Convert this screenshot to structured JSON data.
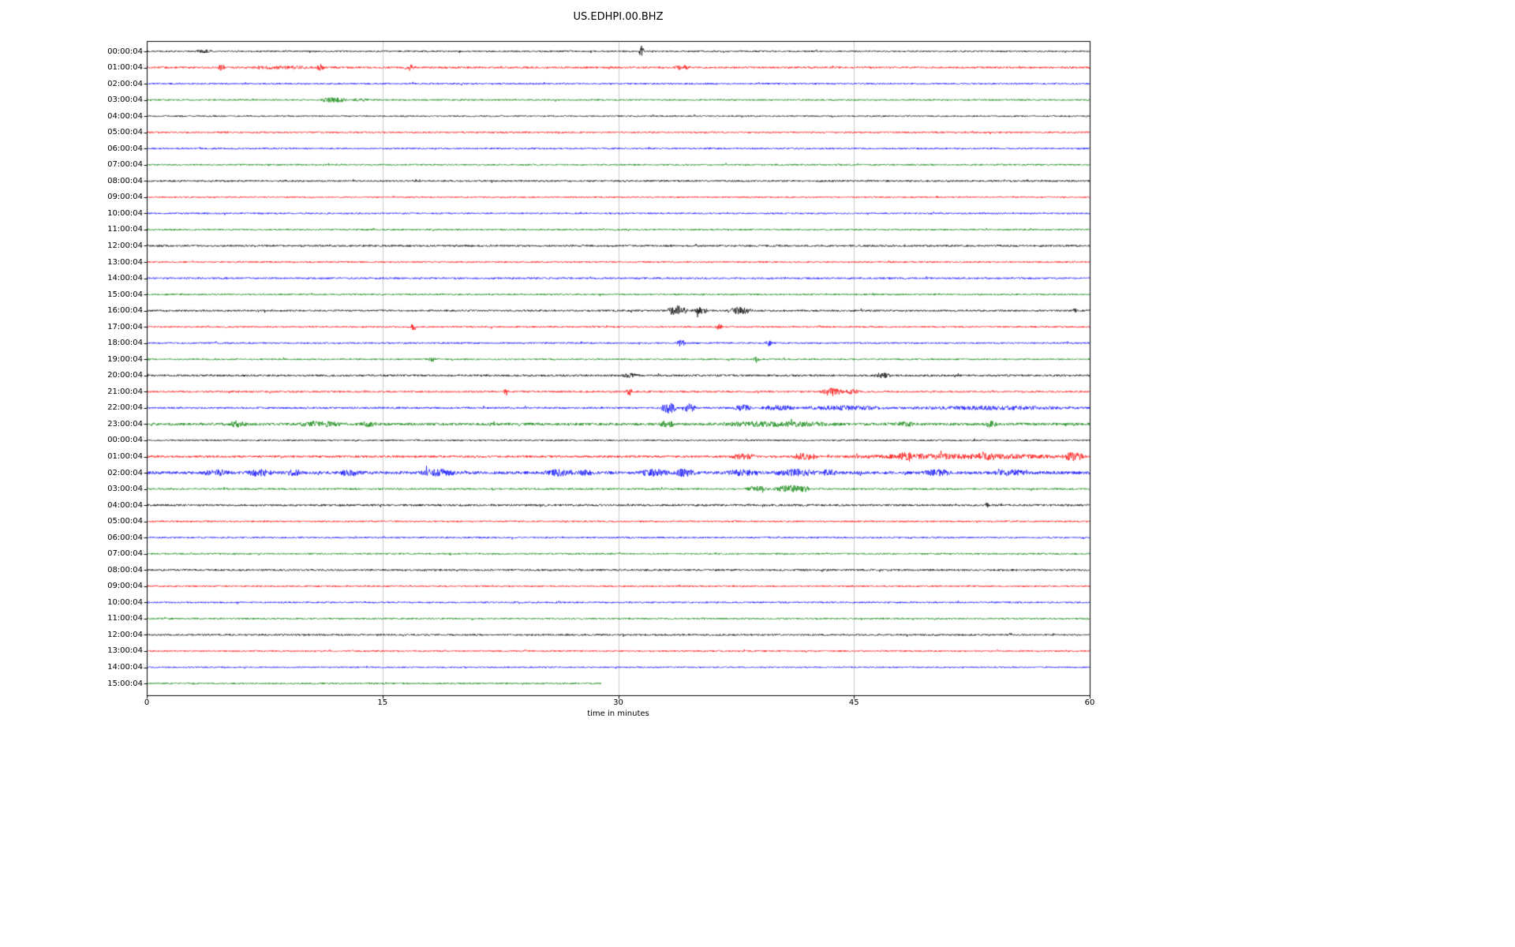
{
  "chart_data": {
    "type": "line",
    "subtype": "helicorder-dayplot",
    "title": "US.EDHPI.00.BHZ",
    "xlabel": "time in minutes",
    "x_range": [
      0,
      60
    ],
    "x_ticks": [
      0,
      15,
      30,
      45,
      60
    ],
    "gridlines_x": [
      15,
      30,
      45
    ],
    "colors": {
      "black": "#000000",
      "red": "#ff0000",
      "blue": "#0000ff",
      "green": "#008000"
    },
    "rows": [
      {
        "label": "00:00:04",
        "color": "black",
        "amp": 1.0,
        "events": [
          {
            "t": 3.0,
            "d": 1.2,
            "a": 1.2
          },
          {
            "t": 31.3,
            "d": 0.35,
            "a": 6.5
          }
        ]
      },
      {
        "label": "01:00:04",
        "color": "red",
        "amp": 1.2,
        "events": [
          {
            "t": 4.5,
            "d": 0.5,
            "a": 4.5
          },
          {
            "t": 6.0,
            "d": 5.0,
            "a": 1.2
          },
          {
            "t": 10.8,
            "d": 0.5,
            "a": 3.5
          },
          {
            "t": 16.3,
            "d": 0.8,
            "a": 3.0
          },
          {
            "t": 33.5,
            "d": 1.2,
            "a": 2.2
          }
        ]
      },
      {
        "label": "02:00:04",
        "color": "blue",
        "amp": 1.0,
        "events": []
      },
      {
        "label": "03:00:04",
        "color": "green",
        "amp": 1.0,
        "events": [
          {
            "t": 11.0,
            "d": 1.8,
            "a": 2.8
          },
          {
            "t": 13.0,
            "d": 1.2,
            "a": 1.2
          }
        ]
      },
      {
        "label": "04:00:04",
        "color": "black",
        "amp": 0.9,
        "events": []
      },
      {
        "label": "05:00:04",
        "color": "red",
        "amp": 1.0,
        "events": []
      },
      {
        "label": "06:00:04",
        "color": "blue",
        "amp": 1.0,
        "events": []
      },
      {
        "label": "07:00:04",
        "color": "green",
        "amp": 1.0,
        "events": []
      },
      {
        "label": "08:00:04",
        "color": "black",
        "amp": 1.1,
        "events": []
      },
      {
        "label": "09:00:04",
        "color": "red",
        "amp": 0.9,
        "events": []
      },
      {
        "label": "10:00:04",
        "color": "blue",
        "amp": 1.0,
        "events": []
      },
      {
        "label": "11:00:04",
        "color": "green",
        "amp": 1.0,
        "events": []
      },
      {
        "label": "12:00:04",
        "color": "black",
        "amp": 1.2,
        "events": []
      },
      {
        "label": "13:00:04",
        "color": "red",
        "amp": 1.0,
        "events": []
      },
      {
        "label": "14:00:04",
        "color": "blue",
        "amp": 1.1,
        "events": []
      },
      {
        "label": "15:00:04",
        "color": "green",
        "amp": 1.0,
        "events": []
      },
      {
        "label": "16:00:04",
        "color": "black",
        "amp": 1.2,
        "events": [
          {
            "t": 33.0,
            "d": 1.5,
            "a": 5.5
          },
          {
            "t": 34.6,
            "d": 1.2,
            "a": 3.0
          },
          {
            "t": 36.8,
            "d": 1.8,
            "a": 3.5
          },
          {
            "t": 58.7,
            "d": 0.6,
            "a": 1.8
          }
        ]
      },
      {
        "label": "17:00:04",
        "color": "red",
        "amp": 1.0,
        "events": [
          {
            "t": 16.8,
            "d": 0.35,
            "a": 4.5
          },
          {
            "t": 36.2,
            "d": 0.45,
            "a": 3.5
          }
        ]
      },
      {
        "label": "18:00:04",
        "color": "blue",
        "amp": 1.0,
        "events": [
          {
            "t": 33.7,
            "d": 0.6,
            "a": 3.5
          },
          {
            "t": 39.3,
            "d": 0.5,
            "a": 3.0
          }
        ]
      },
      {
        "label": "19:00:04",
        "color": "green",
        "amp": 1.0,
        "events": [
          {
            "t": 17.9,
            "d": 0.5,
            "a": 2.5
          },
          {
            "t": 38.6,
            "d": 0.4,
            "a": 3.5
          }
        ]
      },
      {
        "label": "20:00:04",
        "color": "black",
        "amp": 1.3,
        "events": [
          {
            "t": 30.2,
            "d": 1.2,
            "a": 1.8
          },
          {
            "t": 46.2,
            "d": 1.2,
            "a": 2.5
          }
        ]
      },
      {
        "label": "21:00:04",
        "color": "red",
        "amp": 1.1,
        "events": [
          {
            "t": 22.7,
            "d": 0.35,
            "a": 3.5
          },
          {
            "t": 30.5,
            "d": 0.4,
            "a": 4.5
          },
          {
            "t": 42.8,
            "d": 1.6,
            "a": 4.5
          },
          {
            "t": 44.4,
            "d": 1.0,
            "a": 2.5
          }
        ]
      },
      {
        "label": "22:00:04",
        "color": "blue",
        "amp": 1.2,
        "events": [
          {
            "t": 32.6,
            "d": 1.2,
            "a": 6.0
          },
          {
            "t": 34.0,
            "d": 1.0,
            "a": 4.5
          },
          {
            "t": 37.3,
            "d": 1.2,
            "a": 3.5
          },
          {
            "t": 39.0,
            "d": 2.5,
            "a": 2.5
          },
          {
            "t": 41.5,
            "d": 6.0,
            "a": 2.0
          },
          {
            "t": 47.5,
            "d": 12.5,
            "a": 1.6
          }
        ]
      },
      {
        "label": "23:00:04",
        "color": "green",
        "amp": 1.7,
        "events": [
          {
            "t": 5.2,
            "d": 1.2,
            "a": 3.0
          },
          {
            "t": 9.5,
            "d": 3.0,
            "a": 2.5
          },
          {
            "t": 13.5,
            "d": 1.2,
            "a": 2.2
          },
          {
            "t": 32.5,
            "d": 1.2,
            "a": 3.0
          },
          {
            "t": 35.5,
            "d": 9.0,
            "a": 2.0
          },
          {
            "t": 47.6,
            "d": 1.2,
            "a": 2.5
          },
          {
            "t": 53.2,
            "d": 1.0,
            "a": 2.5
          }
        ]
      },
      {
        "label": "00:00:04",
        "color": "black",
        "amp": 1.0,
        "events": []
      },
      {
        "label": "01:00:04",
        "color": "red",
        "amp": 1.4,
        "events": [
          {
            "t": 37.0,
            "d": 2.0,
            "a": 2.5
          },
          {
            "t": 41.0,
            "d": 1.8,
            "a": 3.5
          },
          {
            "t": 43.5,
            "d": 16.0,
            "a": 2.2
          },
          {
            "t": 47.8,
            "d": 1.0,
            "a": 3.5
          },
          {
            "t": 52.8,
            "d": 1.2,
            "a": 3.0
          },
          {
            "t": 58.2,
            "d": 1.6,
            "a": 4.0
          }
        ]
      },
      {
        "label": "02:00:04",
        "color": "blue",
        "amp": 1.9,
        "events": [
          {
            "t": 3.5,
            "d": 2.0,
            "a": 2.5
          },
          {
            "t": 6.2,
            "d": 2.0,
            "a": 3.0
          },
          {
            "t": 8.8,
            "d": 1.2,
            "a": 2.5
          },
          {
            "t": 12.2,
            "d": 1.6,
            "a": 3.0
          },
          {
            "t": 17.2,
            "d": 2.6,
            "a": 3.5
          },
          {
            "t": 25.2,
            "d": 2.2,
            "a": 3.0
          },
          {
            "t": 27.3,
            "d": 1.2,
            "a": 2.5
          },
          {
            "t": 31.2,
            "d": 2.2,
            "a": 3.0
          },
          {
            "t": 33.4,
            "d": 1.6,
            "a": 3.5
          },
          {
            "t": 36.8,
            "d": 2.2,
            "a": 2.8
          },
          {
            "t": 39.8,
            "d": 3.0,
            "a": 3.2
          },
          {
            "t": 42.8,
            "d": 1.2,
            "a": 2.8
          },
          {
            "t": 49.2,
            "d": 2.2,
            "a": 2.8
          },
          {
            "t": 53.8,
            "d": 2.2,
            "a": 3.0
          }
        ]
      },
      {
        "label": "03:00:04",
        "color": "green",
        "amp": 1.1,
        "events": [
          {
            "t": 38.0,
            "d": 1.6,
            "a": 2.8
          },
          {
            "t": 39.8,
            "d": 2.2,
            "a": 3.8
          },
          {
            "t": 41.6,
            "d": 0.6,
            "a": 2.8
          }
        ]
      },
      {
        "label": "04:00:04",
        "color": "black",
        "amp": 1.3,
        "events": [
          {
            "t": 53.3,
            "d": 0.35,
            "a": 2.5
          }
        ]
      },
      {
        "label": "05:00:04",
        "color": "red",
        "amp": 1.0,
        "events": []
      },
      {
        "label": "06:00:04",
        "color": "blue",
        "amp": 1.0,
        "events": []
      },
      {
        "label": "07:00:04",
        "color": "green",
        "amp": 1.0,
        "events": []
      },
      {
        "label": "08:00:04",
        "color": "black",
        "amp": 1.2,
        "events": []
      },
      {
        "label": "09:00:04",
        "color": "red",
        "amp": 1.0,
        "events": []
      },
      {
        "label": "10:00:04",
        "color": "blue",
        "amp": 1.0,
        "events": []
      },
      {
        "label": "11:00:04",
        "color": "green",
        "amp": 1.0,
        "events": []
      },
      {
        "label": "12:00:04",
        "color": "black",
        "amp": 1.1,
        "events": []
      },
      {
        "label": "13:00:04",
        "color": "red",
        "amp": 1.0,
        "events": []
      },
      {
        "label": "14:00:04",
        "color": "blue",
        "amp": 0.9,
        "events": []
      },
      {
        "label": "15:00:04",
        "color": "green",
        "amp": 1.0,
        "end": 0.482,
        "events": []
      }
    ]
  }
}
